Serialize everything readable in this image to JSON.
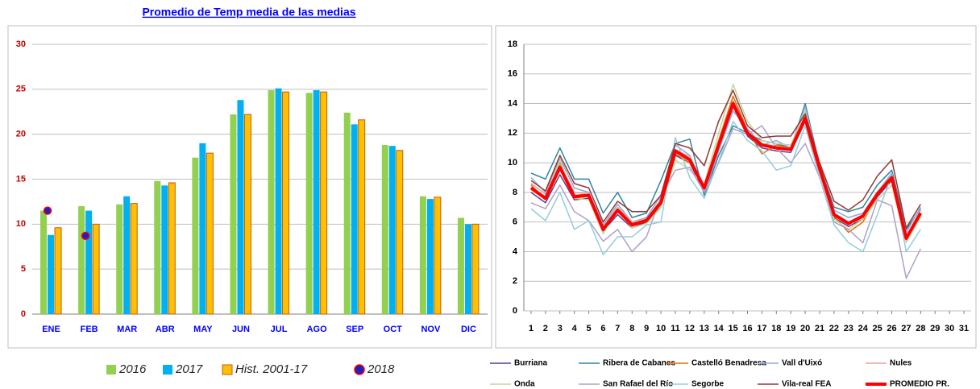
{
  "chart_data": [
    {
      "type": "bar",
      "title": "Promedio de Temp media de las medias",
      "categories": [
        "ENE",
        "FEB",
        "MAR",
        "ABR",
        "MAY",
        "JUN",
        "JUL",
        "AGO",
        "SEP",
        "OCT",
        "NOV",
        "DIC"
      ],
      "series": [
        {
          "name": "2016",
          "color": "#92d050",
          "values": [
            11.5,
            12.0,
            12.2,
            14.8,
            17.4,
            22.2,
            24.9,
            24.6,
            22.4,
            18.8,
            13.1,
            10.7
          ]
        },
        {
          "name": "2017",
          "color": "#00b0f0",
          "values": [
            8.8,
            11.5,
            13.1,
            14.3,
            19.0,
            23.8,
            25.1,
            24.9,
            21.1,
            18.7,
            12.8,
            10.0
          ]
        },
        {
          "name": "Hist. 2001-17",
          "color": "#ffc000",
          "edgecolor": "#c55a11",
          "values": [
            9.6,
            10.0,
            12.3,
            14.6,
            17.9,
            22.2,
            24.7,
            24.7,
            21.6,
            18.2,
            13.0,
            10.0
          ]
        },
        {
          "name": "2018",
          "color": "#2020c0",
          "edgecolor": "#ff0000",
          "marker": "dot",
          "values": [
            11.5,
            8.7,
            null,
            null,
            null,
            null,
            null,
            null,
            null,
            null,
            null,
            null
          ]
        }
      ],
      "ylim": [
        0,
        30
      ],
      "yticks": [
        0,
        5,
        10,
        15,
        20,
        25,
        30
      ],
      "grid": true
    },
    {
      "type": "line",
      "x": [
        1,
        2,
        3,
        4,
        5,
        6,
        7,
        8,
        9,
        10,
        11,
        12,
        13,
        14,
        15,
        16,
        17,
        18,
        19,
        20,
        21,
        22,
        23,
        24,
        25,
        26,
        27,
        28,
        29,
        30,
        31
      ],
      "xlim": [
        0.5,
        31.5
      ],
      "xticks": [
        1,
        2,
        3,
        4,
        5,
        6,
        7,
        8,
        9,
        10,
        11,
        12,
        13,
        14,
        15,
        16,
        17,
        18,
        19,
        20,
        21,
        22,
        23,
        24,
        25,
        26,
        27,
        28,
        29,
        30,
        31
      ],
      "ylim": [
        0,
        18
      ],
      "yticks": [
        0,
        2,
        4,
        6,
        8,
        10,
        12,
        14,
        16,
        18
      ],
      "grid": true,
      "series": [
        {
          "name": "Burriana",
          "color": "#5b3f8a",
          "width": 1.5,
          "values": [
            8.0,
            7.3,
            9.2,
            7.5,
            7.6,
            5.4,
            6.5,
            5.6,
            6.0,
            7.0,
            10.5,
            10.0,
            8.0,
            11.0,
            13.8,
            11.8,
            11.0,
            10.8,
            10.7,
            12.8,
            9.4,
            6.3,
            5.7,
            6.2,
            7.7,
            8.8,
            4.8,
            6.5,
            null,
            null,
            null
          ]
        },
        {
          "name": "Ribera de Cabanes",
          "color": "#31849b",
          "width": 1.5,
          "values": [
            9.3,
            8.9,
            11.0,
            8.9,
            8.9,
            6.6,
            8.0,
            6.3,
            6.6,
            8.8,
            11.3,
            11.6,
            7.8,
            10.5,
            12.5,
            12.0,
            11.5,
            11.3,
            11.0,
            14.0,
            9.8,
            7.0,
            6.7,
            7.0,
            8.5,
            9.5,
            5.5,
            6.9,
            null,
            null,
            null
          ]
        },
        {
          "name": "Castelló Benadresa",
          "color": "#e46c0a",
          "width": 1.5,
          "values": [
            8.5,
            7.5,
            10.0,
            7.8,
            7.9,
            5.6,
            7.0,
            5.9,
            6.2,
            7.5,
            10.6,
            10.0,
            8.4,
            11.5,
            14.5,
            12.2,
            10.6,
            11.2,
            11.0,
            13.2,
            9.5,
            6.4,
            5.3,
            6.0,
            7.8,
            8.9,
            5.0,
            6.6,
            null,
            null,
            null
          ]
        },
        {
          "name": "Vall d'Uixó",
          "color": "#8ea9db",
          "width": 1.5,
          "values": [
            9.0,
            8.0,
            10.3,
            8.3,
            8.0,
            5.8,
            7.2,
            6.0,
            6.3,
            7.8,
            11.2,
            10.5,
            8.0,
            10.8,
            13.5,
            12.3,
            11.2,
            11.5,
            11.0,
            13.8,
            9.6,
            6.8,
            6.3,
            6.6,
            8.0,
            9.3,
            5.3,
            7.0,
            null,
            null,
            null
          ]
        },
        {
          "name": "Nules",
          "color": "#e6a0a0",
          "width": 1.5,
          "values": [
            8.6,
            7.9,
            9.9,
            8.0,
            7.9,
            5.7,
            7.0,
            6.0,
            6.2,
            7.4,
            10.9,
            10.4,
            8.4,
            11.3,
            14.2,
            12.1,
            11.3,
            11.1,
            11.0,
            13.1,
            9.7,
            6.6,
            6.0,
            6.5,
            8.0,
            9.1,
            5.0,
            6.8,
            null,
            null,
            null
          ]
        },
        {
          "name": "Onda",
          "color": "#c3d69b",
          "width": 1.5,
          "values": [
            8.2,
            7.5,
            10.2,
            7.6,
            7.5,
            5.2,
            7.0,
            5.6,
            5.9,
            7.0,
            10.2,
            9.5,
            8.5,
            12.0,
            15.3,
            12.8,
            11.5,
            11.3,
            11.2,
            13.5,
            9.6,
            6.2,
            5.5,
            6.2,
            7.5,
            8.5,
            4.6,
            6.4,
            null,
            null,
            null
          ]
        },
        {
          "name": "San Rafael del Río",
          "color": "#b1a0c7",
          "width": 1.5,
          "values": [
            7.3,
            6.9,
            8.5,
            6.7,
            6.1,
            4.7,
            5.5,
            4.0,
            5.0,
            7.7,
            9.5,
            9.7,
            8.0,
            10.0,
            12.3,
            11.9,
            12.5,
            11.0,
            10.0,
            11.3,
            9.0,
            6.0,
            5.5,
            4.6,
            7.5,
            7.1,
            2.2,
            4.2,
            null,
            null,
            null
          ]
        },
        {
          "name": "Segorbe",
          "color": "#92cddc",
          "width": 1.5,
          "values": [
            6.9,
            6.1,
            8.0,
            5.5,
            6.1,
            3.8,
            5.0,
            5.0,
            5.8,
            6.0,
            11.7,
            9.0,
            7.6,
            10.1,
            12.8,
            11.5,
            10.8,
            9.5,
            9.8,
            12.5,
            9.0,
            5.8,
            4.6,
            4.0,
            6.5,
            9.2,
            4.0,
            5.5,
            null,
            null,
            null
          ]
        },
        {
          "name": "Vila-real FEA",
          "color": "#943634",
          "width": 1.5,
          "values": [
            8.8,
            8.1,
            10.5,
            8.6,
            8.3,
            6.0,
            7.4,
            6.7,
            6.7,
            7.8,
            11.3,
            11.0,
            9.8,
            12.8,
            14.9,
            12.5,
            11.7,
            11.8,
            11.8,
            13.3,
            10.0,
            7.4,
            6.8,
            7.5,
            9.1,
            10.2,
            5.6,
            7.2,
            null,
            null,
            null
          ]
        },
        {
          "name": "PROMEDIO PR.",
          "color": "#ff0000",
          "width": 4,
          "values": [
            8.3,
            7.6,
            9.7,
            7.7,
            7.8,
            5.5,
            6.8,
            5.8,
            6.1,
            7.3,
            10.8,
            10.2,
            8.3,
            11.2,
            14.0,
            12.0,
            11.2,
            11.0,
            10.9,
            13.0,
            9.6,
            6.5,
            5.9,
            6.4,
            7.9,
            9.0,
            4.9,
            6.6,
            null,
            null,
            null
          ]
        }
      ]
    }
  ]
}
